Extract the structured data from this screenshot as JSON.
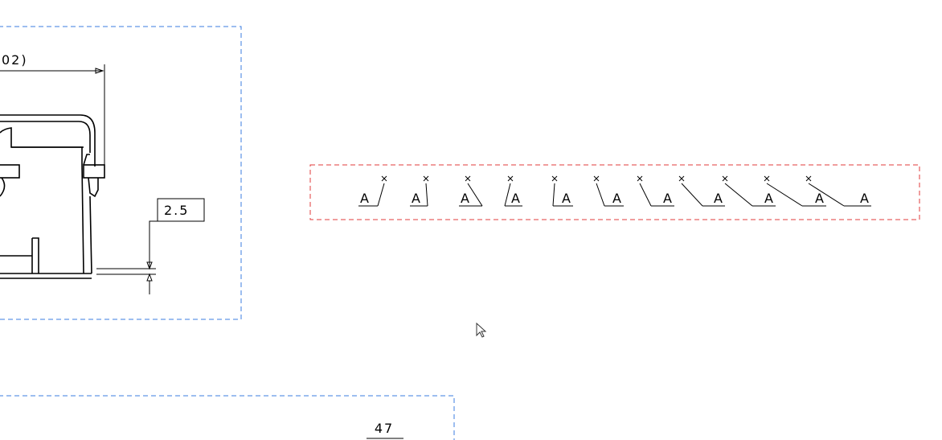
{
  "drawing": {
    "top_dimension_text": "02)",
    "step_dimension_box_text": "2.5",
    "bottom_view_text": "47",
    "leader_labels": [
      "A",
      "A",
      "A",
      "A",
      "A",
      "A",
      "A",
      "A",
      "A",
      "A",
      "A"
    ],
    "colors": {
      "view_frame": "#3b7de0",
      "selection_frame": "#e03b3b",
      "geometry": "#000000"
    }
  }
}
